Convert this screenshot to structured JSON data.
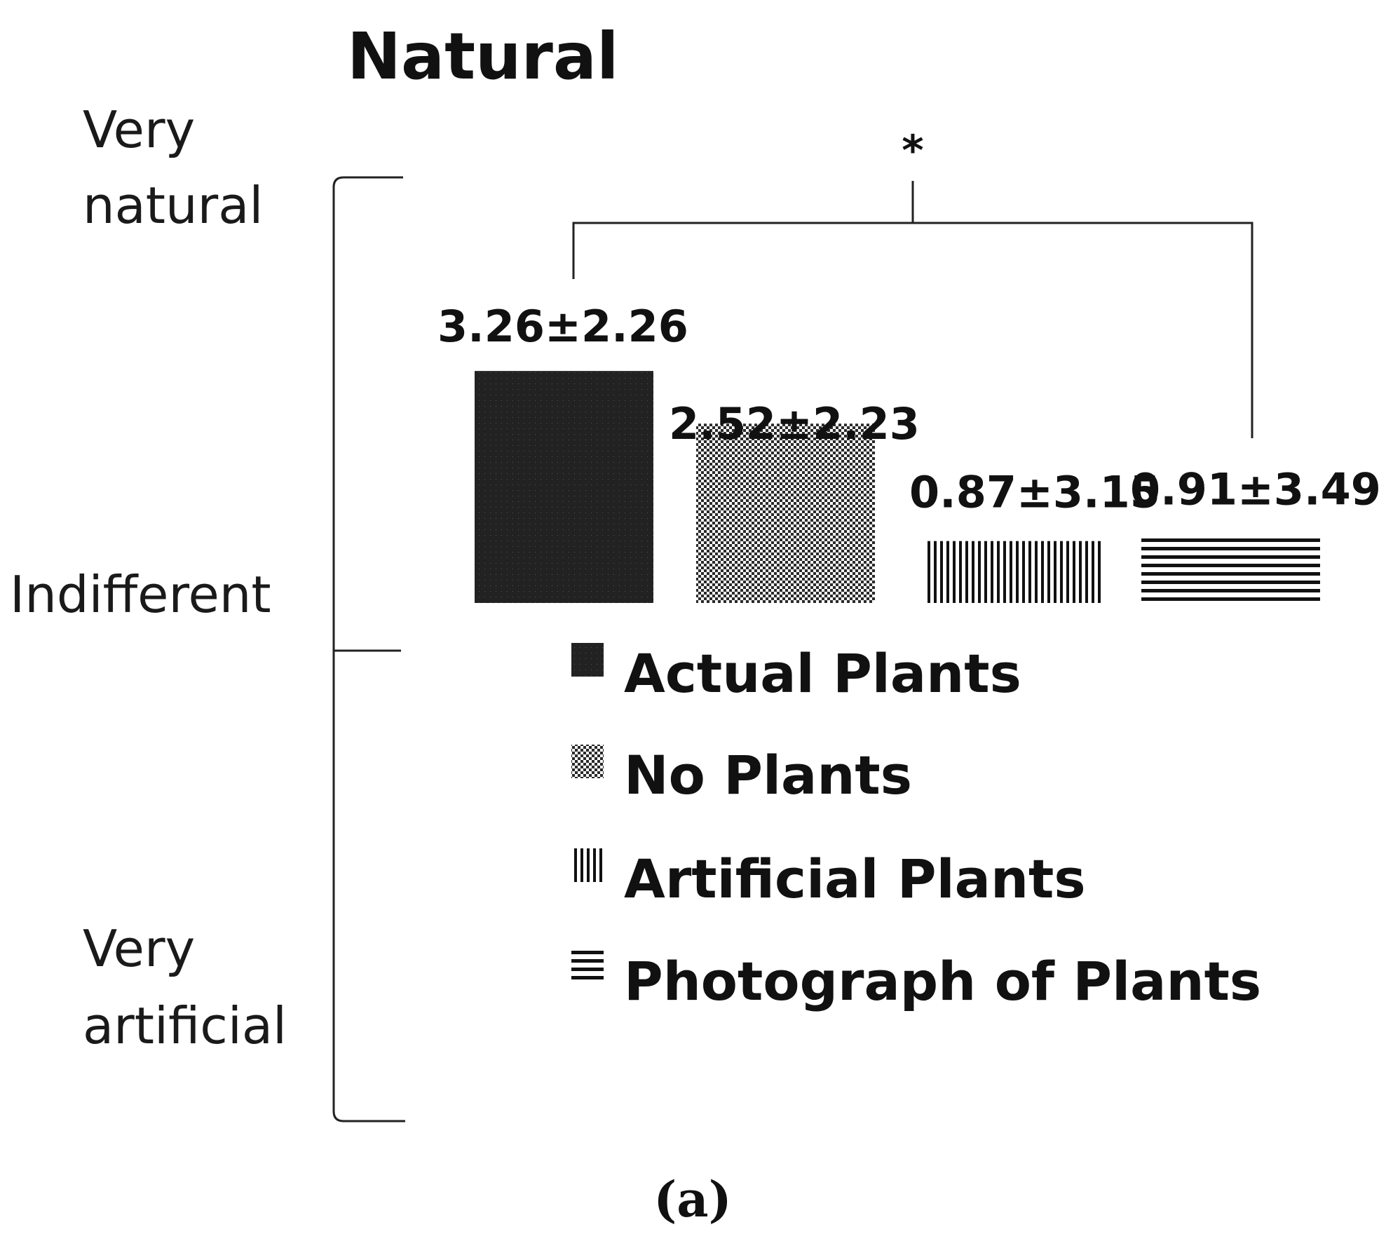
{
  "chart_data": {
    "type": "bar",
    "title": "Natural",
    "ylabel_top": [
      "Very",
      "natural"
    ],
    "ylabel_mid": "Indifferent",
    "ylabel_bottom": [
      "Very",
      "artificial"
    ],
    "ylim": [
      -3.5,
      3.5
    ],
    "categories": [
      "Actual Plants",
      "No Plants",
      "Artificial Plants",
      "Photograph of Plants"
    ],
    "values": [
      3.26,
      2.52,
      0.87,
      0.91
    ],
    "errors": [
      2.26,
      2.23,
      3.15,
      3.49
    ],
    "value_labels": [
      "3.26±2.26",
      "2.52±2.23",
      "0.87±3.15",
      "0.91±3.49"
    ],
    "patterns": [
      "solid",
      "checker",
      "vertical",
      "horizontal"
    ],
    "significance": {
      "between": [
        "Actual Plants",
        "Photograph of Plants"
      ],
      "marker": "*"
    },
    "legend": [
      {
        "label": "Actual Plants",
        "pattern": "solid"
      },
      {
        "label": "No Plants",
        "pattern": "checker"
      },
      {
        "label": "Artificial Plants",
        "pattern": "vertical"
      },
      {
        "label": "Photograph of Plants",
        "pattern": "horizontal"
      }
    ],
    "legend_position": "below"
  },
  "caption": "(a)"
}
